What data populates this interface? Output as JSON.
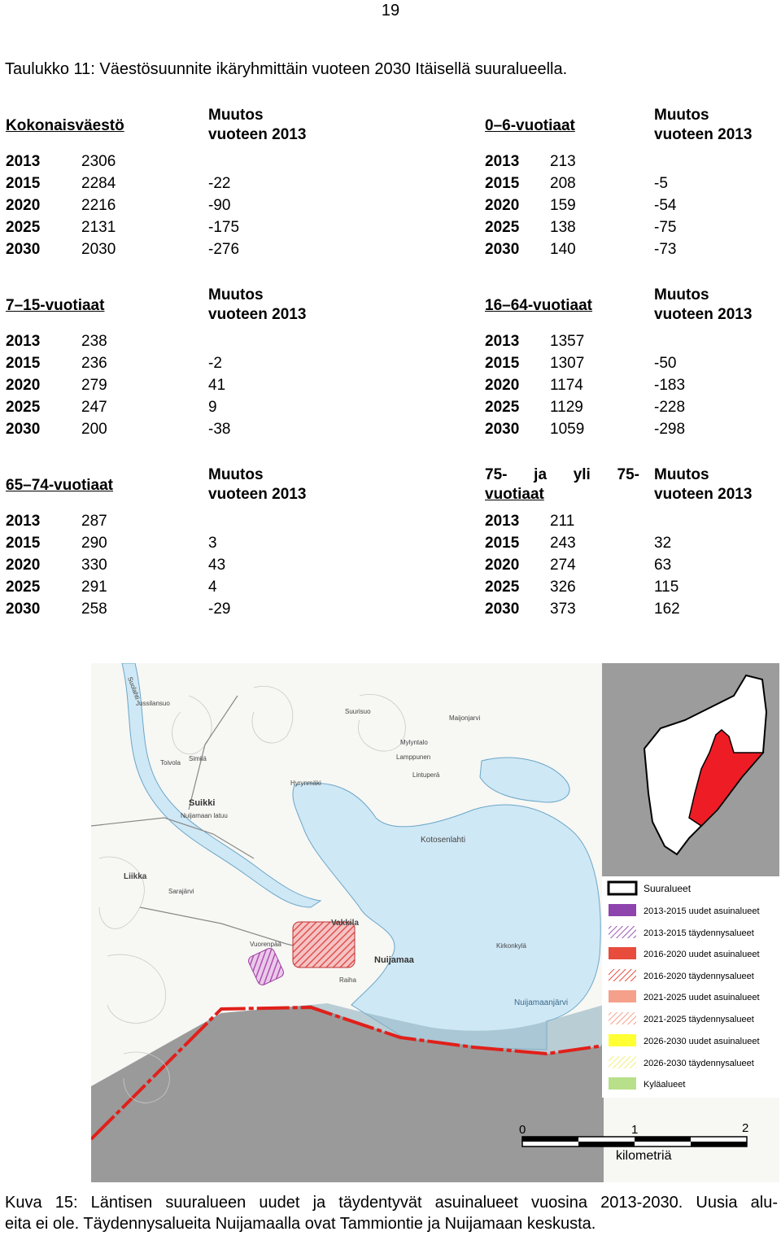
{
  "page_number": "19",
  "table_caption": "Taulukko 11: Väestösuunnite ikäryhmittäin vuoteen 2030 Itäisellä suuralueella.",
  "change_header_line1": "Muutos",
  "change_header_line2": "vuoteen 2013",
  "blocks": [
    {
      "left": {
        "title": "Kokonaisväestö",
        "rows": [
          {
            "year": "2013",
            "value": "2306",
            "change": ""
          },
          {
            "year": "2015",
            "value": "2284",
            "change": "-22"
          },
          {
            "year": "2020",
            "value": "2216",
            "change": "-90"
          },
          {
            "year": "2025",
            "value": "2131",
            "change": "-175"
          },
          {
            "year": "2030",
            "value": "2030",
            "change": "-276"
          }
        ]
      },
      "right": {
        "title": "0–6-vuotiaat",
        "rows": [
          {
            "year": "2013",
            "value": "213",
            "change": ""
          },
          {
            "year": "2015",
            "value": "208",
            "change": "-5"
          },
          {
            "year": "2020",
            "value": "159",
            "change": "-54"
          },
          {
            "year": "2025",
            "value": "138",
            "change": "-75"
          },
          {
            "year": "2030",
            "value": "140",
            "change": "-73"
          }
        ]
      }
    },
    {
      "left": {
        "title": "7–15-vuotiaat",
        "rows": [
          {
            "year": "2013",
            "value": "238",
            "change": ""
          },
          {
            "year": "2015",
            "value": "236",
            "change": "-2"
          },
          {
            "year": "2020",
            "value": "279",
            "change": "41"
          },
          {
            "year": "2025",
            "value": "247",
            "change": "9"
          },
          {
            "year": "2030",
            "value": "200",
            "change": "-38"
          }
        ]
      },
      "right": {
        "title": "16–64-vuotiaat",
        "rows": [
          {
            "year": "2013",
            "value": "1357",
            "change": ""
          },
          {
            "year": "2015",
            "value": "1307",
            "change": "-50"
          },
          {
            "year": "2020",
            "value": "1174",
            "change": "-183"
          },
          {
            "year": "2025",
            "value": "1129",
            "change": "-228"
          },
          {
            "year": "2030",
            "value": "1059",
            "change": "-298"
          }
        ]
      }
    },
    {
      "left": {
        "title": "65–74-vuotiaat",
        "rows": [
          {
            "year": "2013",
            "value": "287",
            "change": ""
          },
          {
            "year": "2015",
            "value": "290",
            "change": "3"
          },
          {
            "year": "2020",
            "value": "330",
            "change": "43"
          },
          {
            "year": "2025",
            "value": "291",
            "change": "4"
          },
          {
            "year": "2030",
            "value": "258",
            "change": "-29"
          }
        ]
      },
      "right": {
        "title_line1": "75- ja yli 75-",
        "title_line2": "vuotiaat",
        "rows": [
          {
            "year": "2013",
            "value": "211",
            "change": ""
          },
          {
            "year": "2015",
            "value": "243",
            "change": "32"
          },
          {
            "year": "2020",
            "value": "274",
            "change": "63"
          },
          {
            "year": "2025",
            "value": "326",
            "change": "115"
          },
          {
            "year": "2030",
            "value": "373",
            "change": "162"
          }
        ]
      }
    }
  ],
  "map": {
    "place_labels": [
      "Suolahti",
      "Suurisuo",
      "Maijonjarvi",
      "Jussilansuo",
      "Toivola",
      "Similä",
      "Suikki",
      "Nuijamaan latuu",
      "Mylyntalo",
      "Lamppunen",
      "Lintuperä",
      "Hyrynmäki",
      "Kotosenlahti",
      "Liikka",
      "Sarajärvi",
      "Vakkila",
      "Vuorenpää",
      "Nuijamaa",
      "Kirkonkylä",
      "Raiha",
      "Nuijamaanjärvi"
    ],
    "legend": [
      {
        "label": "Suuralueet",
        "color": "#ffffff",
        "style": "outline"
      },
      {
        "label": "2013-2015 uudet asuinalueet",
        "color": "#8e44ad",
        "style": "solid"
      },
      {
        "label": "2013-2015 täydennysalueet",
        "color": "#9b59b6",
        "style": "hatch"
      },
      {
        "label": "2016-2020 uudet asuinalueet",
        "color": "#e74c3c",
        "style": "solid"
      },
      {
        "label": "2016-2020 täydennysalueet",
        "color": "#e74c3c",
        "style": "hatch"
      },
      {
        "label": "2021-2025 uudet asuinalueet",
        "color": "#f5a08a",
        "style": "solid"
      },
      {
        "label": "2021-2025 täydennysalueet",
        "color": "#f5a08a",
        "style": "hatch"
      },
      {
        "label": "2026-2030 uudet asuinalueet",
        "color": "#ffff33",
        "style": "solid"
      },
      {
        "label": "2026-2030 täydennysalueet",
        "color": "#ffff66",
        "style": "hatch"
      },
      {
        "label": "Kyläalueet",
        "color": "#b8e08a",
        "style": "solid"
      }
    ],
    "scale_ticks": [
      "0",
      "1",
      "2"
    ],
    "scale_unit": "kilometriä"
  },
  "figure_caption_line1": "Kuva 15: Läntisen suuralueen uudet ja täydentyvät asuinalueet vuosina 2013-2030. Uusia alu-",
  "figure_caption_line2": "eita ei ole. Täydennysalueita Nuijamaalla ovat Tammiontie ja Nuijamaan keskusta."
}
